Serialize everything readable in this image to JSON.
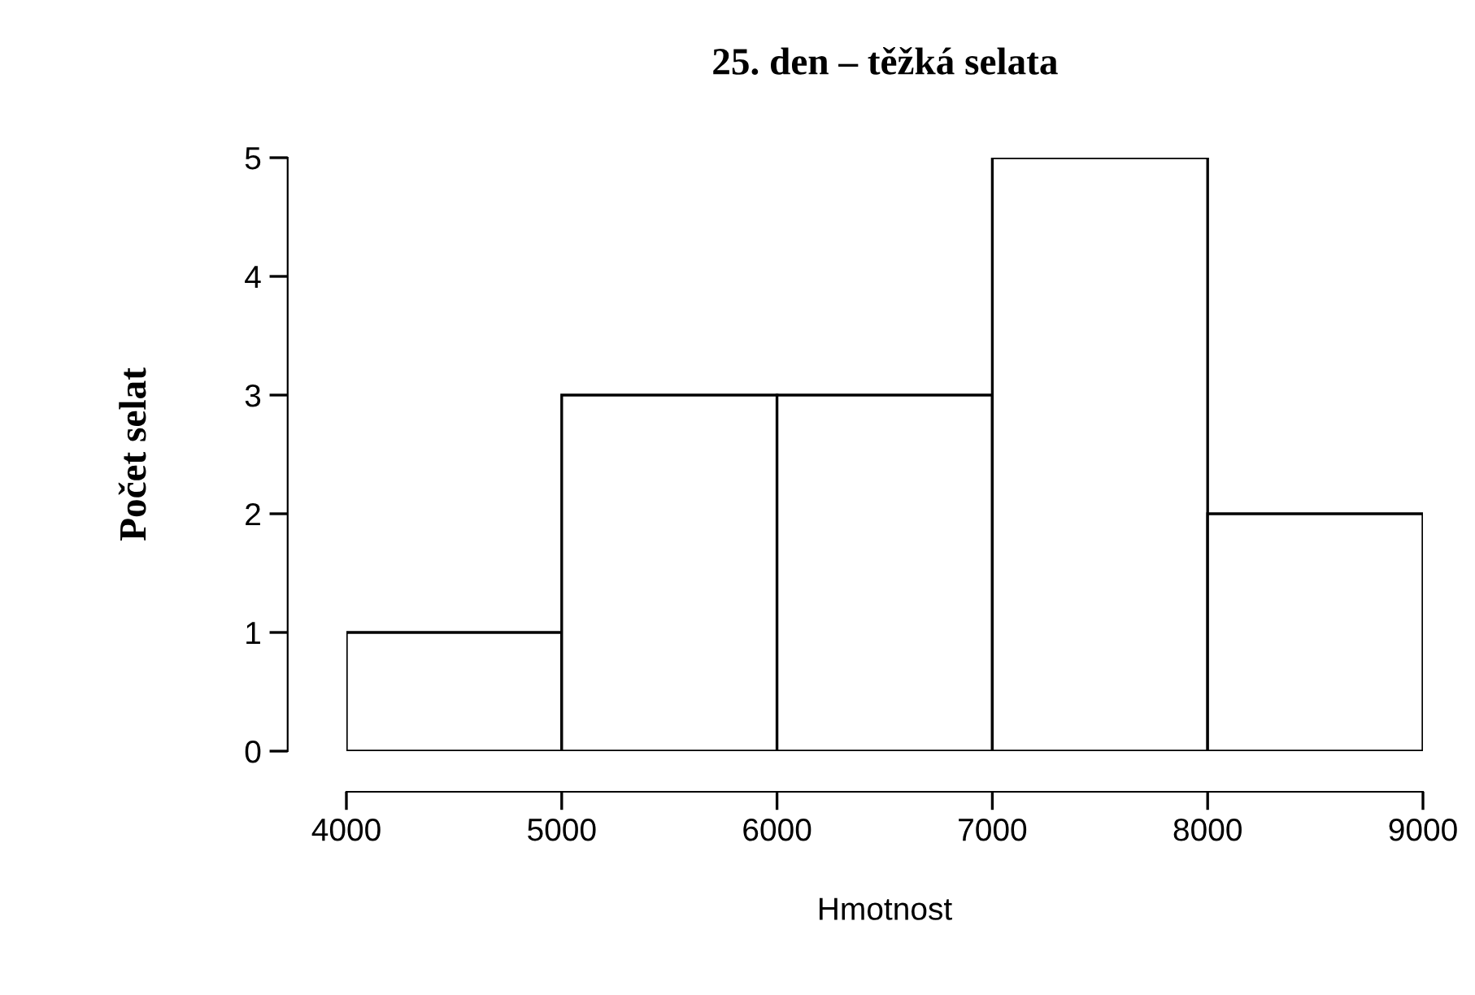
{
  "chart_data": {
    "type": "histogram",
    "title": "25. den – těžká selata",
    "xlabel": "Hmotnost",
    "ylabel": "Počet selat",
    "bins": [
      4000,
      5000,
      6000,
      7000,
      8000,
      9000
    ],
    "values": [
      1,
      3,
      3,
      5,
      2
    ],
    "color": "#ffffff",
    "xlim": [
      4000,
      9000
    ],
    "ylim": [
      0,
      5
    ],
    "xticks": [
      4000,
      5000,
      6000,
      7000,
      8000,
      9000
    ],
    "yticks": [
      0,
      1,
      2,
      3,
      4,
      5
    ],
    "grid": false
  }
}
